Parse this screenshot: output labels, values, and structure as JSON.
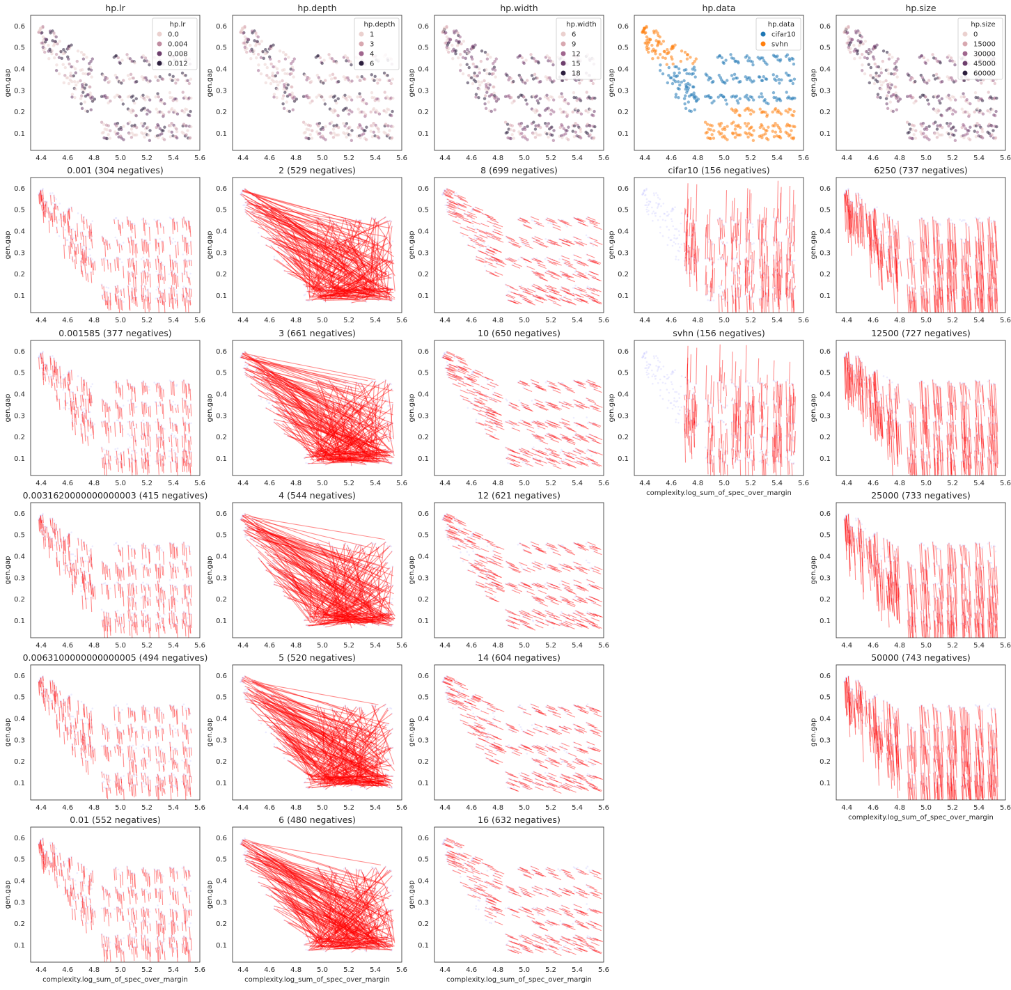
{
  "figure": {
    "columns": [
      "hp.lr",
      "hp.depth",
      "hp.width",
      "hp.data",
      "hp.size"
    ],
    "xlabel": "complexity.log_sum_of_spec_over_margin",
    "ylabel": "gen.gap",
    "xticks": [
      "4.4",
      "4.6",
      "4.8",
      "5.0",
      "5.2",
      "5.4",
      "5.6"
    ],
    "yticks": [
      "0.1",
      "0.2",
      "0.3",
      "0.4",
      "0.5",
      "0.6"
    ],
    "colors": {
      "red": "#ff0000",
      "faint": "#c8c8ff",
      "cifar10": "#1f77b4",
      "svhn": "#ff7f0e"
    }
  },
  "chart_data": [
    {
      "type": "scatter",
      "row": 0,
      "col": 0,
      "title": "hp.lr",
      "xlabel": "",
      "ylabel": "gen.gap",
      "xlim": [
        4.32,
        5.6
      ],
      "ylim": [
        0.02,
        0.65
      ],
      "legend": {
        "title": "hp.lr",
        "placement": "top-right",
        "entries": [
          {
            "label": "0.0",
            "color": "#ebd1cf"
          },
          {
            "label": "0.004",
            "color": "#c08ca1"
          },
          {
            "label": "0.008",
            "color": "#6e3f6d"
          },
          {
            "label": "0.012",
            "color": "#2c1e3d"
          }
        ]
      }
    },
    {
      "type": "scatter",
      "row": 0,
      "col": 1,
      "title": "hp.depth",
      "xlabel": "",
      "ylabel": "gen.gap",
      "xlim": [
        4.32,
        5.6
      ],
      "ylim": [
        0.02,
        0.65
      ],
      "legend": {
        "title": "hp.depth",
        "placement": "top-right",
        "entries": [
          {
            "label": "1",
            "color": "#ebd1cf"
          },
          {
            "label": "3",
            "color": "#d8a8b0"
          },
          {
            "label": "4",
            "color": "#a0668e"
          },
          {
            "label": "6",
            "color": "#2c1e3d"
          }
        ]
      }
    },
    {
      "type": "scatter",
      "row": 0,
      "col": 2,
      "title": "hp.width",
      "xlabel": "",
      "ylabel": "gen.gap",
      "xlim": [
        4.32,
        5.6
      ],
      "ylim": [
        0.02,
        0.65
      ],
      "legend": {
        "title": "hp.width",
        "placement": "top-right",
        "entries": [
          {
            "label": "6",
            "color": "#ebd1cf"
          },
          {
            "label": "9",
            "color": "#d8a8b0"
          },
          {
            "label": "12",
            "color": "#a0668e"
          },
          {
            "label": "15",
            "color": "#6e3f6d"
          },
          {
            "label": "18",
            "color": "#2c1e3d"
          }
        ]
      }
    },
    {
      "type": "scatter",
      "row": 0,
      "col": 3,
      "title": "hp.data",
      "xlabel": "",
      "ylabel": "gen.gap",
      "xlim": [
        4.32,
        5.6
      ],
      "ylim": [
        0.02,
        0.65
      ],
      "legend": {
        "title": "hp.data",
        "placement": "top-right",
        "entries": [
          {
            "label": "cifar10",
            "color": "#1f77b4"
          },
          {
            "label": "svhn",
            "color": "#ff7f0e"
          }
        ]
      }
    },
    {
      "type": "scatter",
      "row": 0,
      "col": 4,
      "title": "hp.size",
      "xlabel": "",
      "ylabel": "gen.gap",
      "xlim": [
        4.32,
        5.6
      ],
      "ylim": [
        0.02,
        0.65
      ],
      "legend": {
        "title": "hp.size",
        "placement": "top-right",
        "entries": [
          {
            "label": "0",
            "color": "#ebd1cf"
          },
          {
            "label": "15000",
            "color": "#d8a8b0"
          },
          {
            "label": "30000",
            "color": "#a0668e"
          },
          {
            "label": "45000",
            "color": "#6e3f6d"
          },
          {
            "label": "60000",
            "color": "#2c1e3d"
          }
        ]
      }
    },
    {
      "type": "line",
      "row": 1,
      "col": 0,
      "title": "0.001 (304 negatives)",
      "pattern": "short",
      "xlabel": "",
      "ylabel": "gen.gap"
    },
    {
      "type": "line",
      "row": 2,
      "col": 0,
      "title": "0.001585 (377 negatives)",
      "pattern": "short",
      "xlabel": "",
      "ylabel": "gen.gap"
    },
    {
      "type": "line",
      "row": 3,
      "col": 0,
      "title": "0.0031620000000000003 (415 negatives)",
      "pattern": "short",
      "xlabel": "",
      "ylabel": "gen.gap"
    },
    {
      "type": "line",
      "row": 4,
      "col": 0,
      "title": "0.0063100000000000005 (494 negatives)",
      "pattern": "short",
      "xlabel": "",
      "ylabel": "gen.gap"
    },
    {
      "type": "line",
      "row": 5,
      "col": 0,
      "title": "0.01 (552 negatives)",
      "pattern": "short",
      "xlabel": "complexity.log_sum_of_spec_over_margin",
      "ylabel": "gen.gap"
    },
    {
      "type": "line",
      "row": 1,
      "col": 1,
      "title": "2 (529 negatives)",
      "pattern": "fan",
      "xlabel": "",
      "ylabel": "gen.gap"
    },
    {
      "type": "line",
      "row": 2,
      "col": 1,
      "title": "3 (661 negatives)",
      "pattern": "fan",
      "xlabel": "",
      "ylabel": "gen.gap"
    },
    {
      "type": "line",
      "row": 3,
      "col": 1,
      "title": "4 (544 negatives)",
      "pattern": "fan",
      "xlabel": "",
      "ylabel": "gen.gap"
    },
    {
      "type": "line",
      "row": 4,
      "col": 1,
      "title": "5 (520 negatives)",
      "pattern": "fan",
      "xlabel": "",
      "ylabel": "gen.gap"
    },
    {
      "type": "line",
      "row": 5,
      "col": 1,
      "title": "6 (480 negatives)",
      "pattern": "fan",
      "xlabel": "complexity.log_sum_of_spec_over_margin",
      "ylabel": "gen.gap"
    },
    {
      "type": "line",
      "row": 1,
      "col": 2,
      "title": "8 (699 negatives)",
      "pattern": "dash",
      "xlabel": "",
      "ylabel": "gen.gap"
    },
    {
      "type": "line",
      "row": 2,
      "col": 2,
      "title": "10 (650 negatives)",
      "pattern": "dash",
      "xlabel": "",
      "ylabel": "gen.gap"
    },
    {
      "type": "line",
      "row": 3,
      "col": 2,
      "title": "12 (621 negatives)",
      "pattern": "dash",
      "xlabel": "",
      "ylabel": "gen.gap"
    },
    {
      "type": "line",
      "row": 4,
      "col": 2,
      "title": "14 (604 negatives)",
      "pattern": "dash",
      "xlabel": "",
      "ylabel": "gen.gap"
    },
    {
      "type": "line",
      "row": 5,
      "col": 2,
      "title": "16 (632 negatives)",
      "pattern": "dash",
      "xlabel": "complexity.log_sum_of_spec_over_margin",
      "ylabel": "gen.gap"
    },
    {
      "type": "line",
      "row": 1,
      "col": 3,
      "title": "cifar10 (156 negatives)",
      "pattern": "vertical",
      "xlabel": "",
      "ylabel": "gen.gap"
    },
    {
      "type": "line",
      "row": 2,
      "col": 3,
      "title": "svhn (156 negatives)",
      "pattern": "vertical",
      "xlabel": "complexity.log_sum_of_spec_over_margin",
      "ylabel": "gen.gap"
    },
    {
      "type": "line",
      "row": 1,
      "col": 4,
      "title": "6250 (737 negatives)",
      "pattern": "size",
      "xlabel": "",
      "ylabel": "gen.gap"
    },
    {
      "type": "line",
      "row": 2,
      "col": 4,
      "title": "12500 (727 negatives)",
      "pattern": "size",
      "xlabel": "",
      "ylabel": "gen.gap"
    },
    {
      "type": "line",
      "row": 3,
      "col": 4,
      "title": "25000 (733 negatives)",
      "pattern": "size",
      "xlabel": "",
      "ylabel": "gen.gap"
    },
    {
      "type": "line",
      "row": 4,
      "col": 4,
      "title": "50000 (743 negatives)",
      "pattern": "size",
      "xlabel": "complexity.log_sum_of_spec_over_margin",
      "ylabel": "gen.gap"
    }
  ]
}
